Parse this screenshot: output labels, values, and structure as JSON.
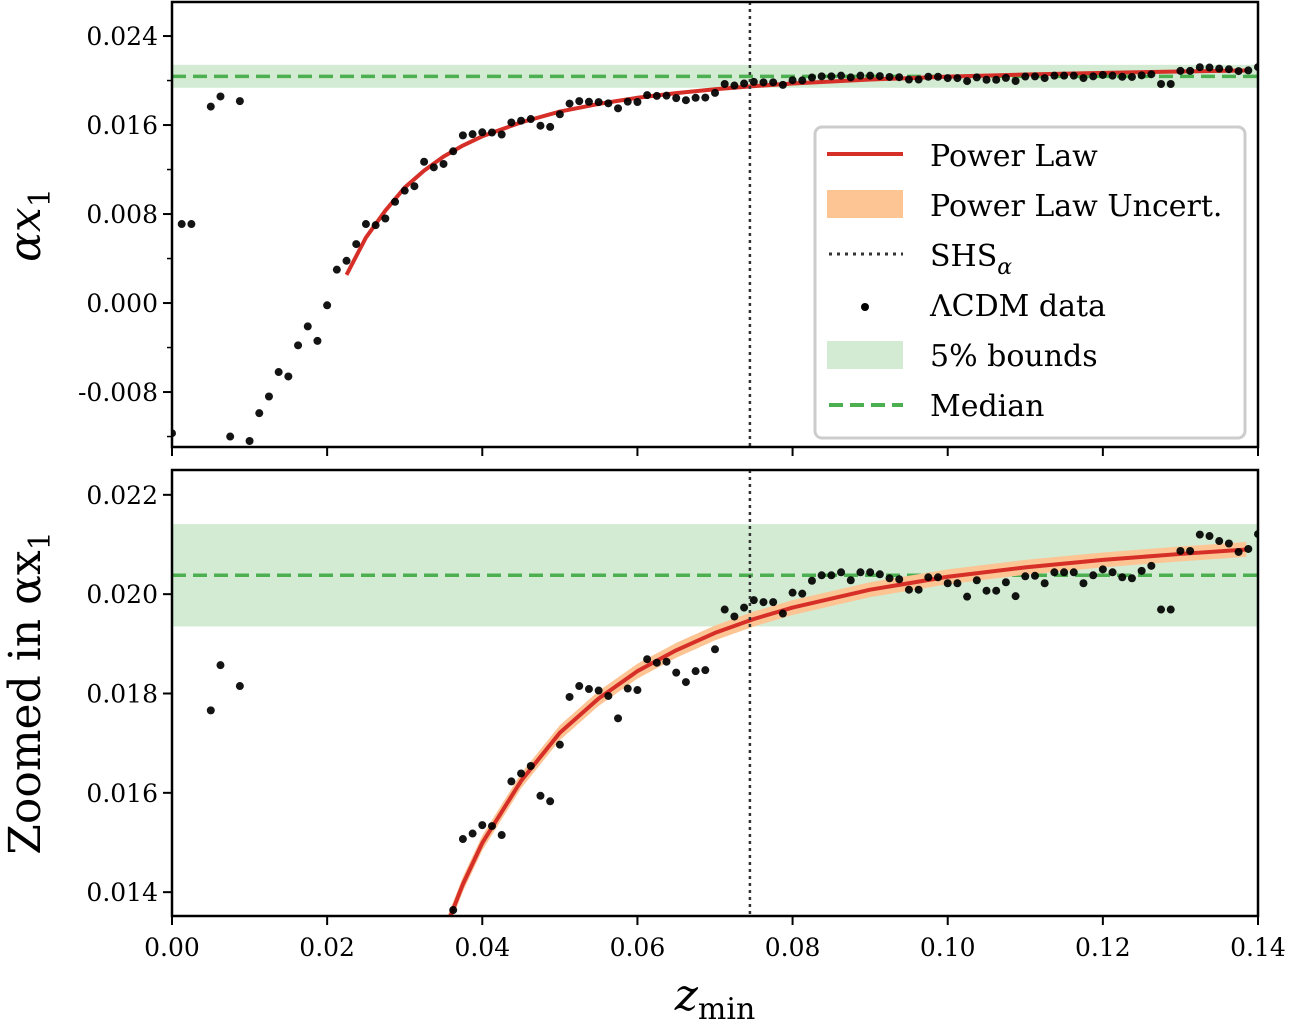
{
  "chart_data": [
    {
      "panel": "top",
      "type": "scatter",
      "ylabel": {
        "main": "αx",
        "sub": "1"
      },
      "xlim": [
        0.0,
        0.14
      ],
      "ylim": [
        -0.01294,
        0.02706
      ],
      "yticks": [
        "-0.008",
        "0.000",
        "0.008",
        "0.016",
        "0.024"
      ],
      "ytick_values": [
        -0.008,
        0.0,
        0.008,
        0.016,
        0.024
      ],
      "yminor_values": [
        -0.012,
        -0.004,
        0.004,
        0.012,
        0.02
      ],
      "legend_placement": "center-right"
    },
    {
      "panel": "bottom",
      "type": "scatter",
      "ylabel": {
        "main": "Zoomed in αx",
        "sub": "1"
      },
      "xlabel": {
        "main": "z",
        "sub": "min"
      },
      "xlim": [
        0.0,
        0.14
      ],
      "ylim": [
        0.01352,
        0.0225
      ],
      "xticks": [
        "0.00",
        "0.02",
        "0.04",
        "0.06",
        "0.08",
        "0.10",
        "0.12",
        "0.14"
      ],
      "xtick_values": [
        0.0,
        0.02,
        0.04,
        0.06,
        0.08,
        0.1,
        0.12,
        0.14
      ],
      "yticks": [
        "0.014",
        "0.016",
        "0.018",
        "0.020",
        "0.022"
      ],
      "ytick_values": [
        0.014,
        0.016,
        0.018,
        0.02,
        0.022
      ]
    }
  ],
  "series": {
    "lcdm_data": {
      "name": "ΛCDM data",
      "color": "#000000",
      "points": [
        [
          0,
          -0.0117
        ],
        [
          0.00125,
          0.0071
        ],
        [
          0.0025,
          0.0071
        ],
        [
          0.005,
          0.01766
        ],
        [
          0.00625,
          0.01857
        ],
        [
          0.0075,
          -0.012
        ],
        [
          0.00875,
          0.01815
        ],
        [
          0.01,
          -0.0124
        ],
        [
          0.01125,
          -0.0099
        ],
        [
          0.0125,
          -0.0084
        ],
        [
          0.01375,
          -0.0062
        ],
        [
          0.015,
          -0.0066
        ],
        [
          0.01625,
          -0.0038
        ],
        [
          0.0175,
          -0.0021
        ],
        [
          0.01875,
          -0.0034
        ],
        [
          0.02,
          -0.0002
        ],
        [
          0.02125,
          0.003
        ],
        [
          0.0225,
          0.0038
        ],
        [
          0.02375,
          0.0053
        ],
        [
          0.025,
          0.0071
        ],
        [
          0.02625,
          0.007
        ],
        [
          0.0275,
          0.0076
        ],
        [
          0.02875,
          0.0091
        ],
        [
          0.03,
          0.0101
        ],
        [
          0.03125,
          0.0105
        ],
        [
          0.0325,
          0.0127
        ],
        [
          0.03375,
          0.0122
        ],
        [
          0.035,
          0.0125
        ],
        [
          0.03625,
          0.01364
        ],
        [
          0.0375,
          0.01507
        ],
        [
          0.03875,
          0.01518
        ],
        [
          0.04,
          0.01535
        ],
        [
          0.04125,
          0.01533
        ],
        [
          0.0425,
          0.01515
        ],
        [
          0.04375,
          0.01623
        ],
        [
          0.045,
          0.01639
        ],
        [
          0.04625,
          0.01654
        ],
        [
          0.0475,
          0.01594
        ],
        [
          0.04875,
          0.01583
        ],
        [
          0.05,
          0.01697
        ],
        [
          0.05125,
          0.01793
        ],
        [
          0.0525,
          0.01815
        ],
        [
          0.05375,
          0.01809
        ],
        [
          0.055,
          0.01806
        ],
        [
          0.05625,
          0.01795
        ],
        [
          0.0575,
          0.0175
        ],
        [
          0.05875,
          0.0181
        ],
        [
          0.06,
          0.01807
        ],
        [
          0.06125,
          0.01869
        ],
        [
          0.0625,
          0.01862
        ],
        [
          0.06375,
          0.01864
        ],
        [
          0.065,
          0.01842
        ],
        [
          0.06625,
          0.01823
        ],
        [
          0.0675,
          0.01845
        ],
        [
          0.06875,
          0.01847
        ],
        [
          0.07,
          0.01889
        ],
        [
          0.07125,
          0.01969
        ],
        [
          0.0725,
          0.01955
        ],
        [
          0.07375,
          0.01973
        ],
        [
          0.075,
          0.01988
        ],
        [
          0.07625,
          0.01984
        ],
        [
          0.0775,
          0.01984
        ],
        [
          0.07875,
          0.01961
        ],
        [
          0.08,
          0.02003
        ],
        [
          0.08125,
          0.02001
        ],
        [
          0.0825,
          0.02027
        ],
        [
          0.08375,
          0.02038
        ],
        [
          0.085,
          0.02038
        ],
        [
          0.08625,
          0.02044
        ],
        [
          0.0875,
          0.02028
        ],
        [
          0.08875,
          0.02044
        ],
        [
          0.09,
          0.02044
        ],
        [
          0.09125,
          0.0204
        ],
        [
          0.0925,
          0.02032
        ],
        [
          0.09375,
          0.0203
        ],
        [
          0.095,
          0.02009
        ],
        [
          0.09625,
          0.02009
        ],
        [
          0.0975,
          0.02034
        ],
        [
          0.09875,
          0.02034
        ],
        [
          0.1,
          0.02022
        ],
        [
          0.10125,
          0.02022
        ],
        [
          0.1025,
          0.01995
        ],
        [
          0.10375,
          0.02028
        ],
        [
          0.105,
          0.02007
        ],
        [
          0.10625,
          0.02007
        ],
        [
          0.1075,
          0.02024
        ],
        [
          0.10875,
          0.01996
        ],
        [
          0.11,
          0.02036
        ],
        [
          0.11125,
          0.02037
        ],
        [
          0.1125,
          0.02022
        ],
        [
          0.11375,
          0.02044
        ],
        [
          0.115,
          0.02044
        ],
        [
          0.11625,
          0.02044
        ],
        [
          0.1175,
          0.02022
        ],
        [
          0.11875,
          0.02038
        ],
        [
          0.12,
          0.0205
        ],
        [
          0.12125,
          0.02044
        ],
        [
          0.1225,
          0.02034
        ],
        [
          0.12375,
          0.02032
        ],
        [
          0.125,
          0.02047
        ],
        [
          0.12625,
          0.02057
        ],
        [
          0.1275,
          0.01969
        ],
        [
          0.12875,
          0.01969
        ],
        [
          0.13,
          0.02087
        ],
        [
          0.13125,
          0.02087
        ],
        [
          0.1325,
          0.0212
        ],
        [
          0.13375,
          0.02117
        ],
        [
          0.135,
          0.02107
        ],
        [
          0.13625,
          0.02102
        ],
        [
          0.1375,
          0.02085
        ],
        [
          0.13875,
          0.02091
        ],
        [
          0.14,
          0.02121
        ]
      ]
    },
    "power_law": {
      "name": "Power Law",
      "color": "#d62f28",
      "points": [
        [
          0.0225,
          0.00254
        ],
        [
          0.025,
          0.00589
        ],
        [
          0.0275,
          0.0083
        ],
        [
          0.03,
          0.01038
        ],
        [
          0.0325,
          0.0119
        ],
        [
          0.035,
          0.01316
        ],
        [
          0.0375,
          0.01416
        ],
        [
          0.04,
          0.01499
        ],
        [
          0.045,
          0.01624
        ],
        [
          0.05,
          0.01721
        ],
        [
          0.055,
          0.0179
        ],
        [
          0.06,
          0.01845
        ],
        [
          0.065,
          0.01887
        ],
        [
          0.07,
          0.01922
        ],
        [
          0.075,
          0.0195
        ],
        [
          0.08,
          0.01973
        ],
        [
          0.09,
          0.02009
        ],
        [
          0.1,
          0.02035
        ],
        [
          0.11,
          0.02054
        ],
        [
          0.12,
          0.02069
        ],
        [
          0.13,
          0.02081
        ],
        [
          0.1385,
          0.0209
        ]
      ]
    },
    "power_law_uncert": {
      "name": "Power Law Uncert.",
      "color": "#fdc494",
      "halfwidth": 0.00015
    },
    "shs_alpha": {
      "name": {
        "main": "SHS",
        "sub": "α"
      },
      "color": "#333333",
      "x": 0.0745
    },
    "bounds_5pct": {
      "name": "5% bounds",
      "color": "#d3ebd3",
      "lower": 0.01935,
      "upper": 0.02141
    },
    "median": {
      "name": "Median",
      "color": "#4caf50",
      "y": 0.02038
    }
  },
  "legend": {
    "power_law": "Power Law",
    "power_law_uncert": "Power Law Uncert.",
    "shs_main": "SHS",
    "shs_sub": "α",
    "lcdm": "ΛCDM data",
    "bounds": "5% bounds",
    "median": "Median"
  },
  "labels": {
    "top_y_main": "αx",
    "top_y_sub": "1",
    "bottom_y_main": "Zoomed in αx",
    "bottom_y_sub": "1",
    "x_main": "z",
    "x_sub": "min"
  }
}
